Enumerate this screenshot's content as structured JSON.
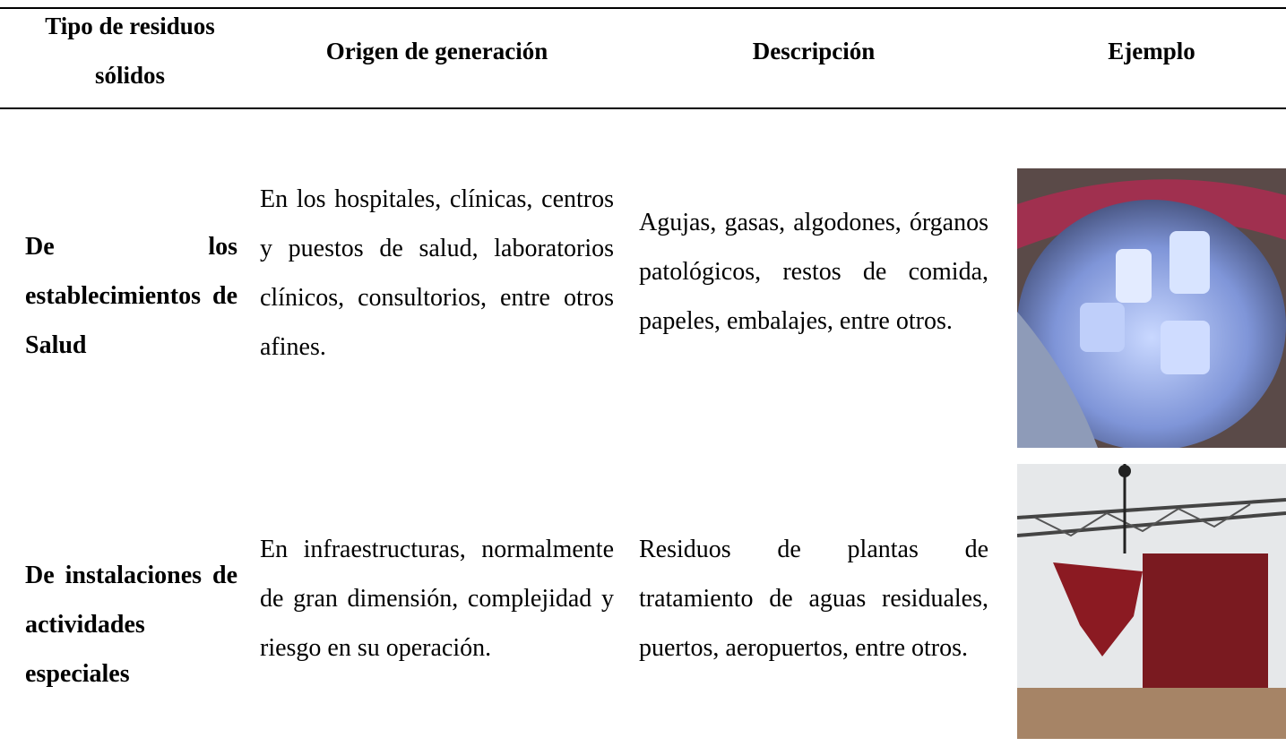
{
  "table": {
    "header": [
      "Tipo de residuos sólidos",
      "Origen de generación",
      "Descripción",
      "Ejemplo"
    ],
    "rows": [
      [
        "De los establecimientos de Salud",
        "En los hospitales, clínicas, centros y puestos de salud, laboratorios clínicos, consultorios, entre otros afines.",
        "Agujas, gasas, algodones, órganos patológicos, restos de comida, papeles, embalajes, entre otros."
      ],
      [
        "De instalaciones de actividades especiales",
        "En infraestructuras, normalmente de gran dimensión, complejidad y riesgo en su operación.",
        "Residuos de plantas de tratamiento de aguas residuales, puertos, aeropuertos, entre otros."
      ]
    ]
  }
}
